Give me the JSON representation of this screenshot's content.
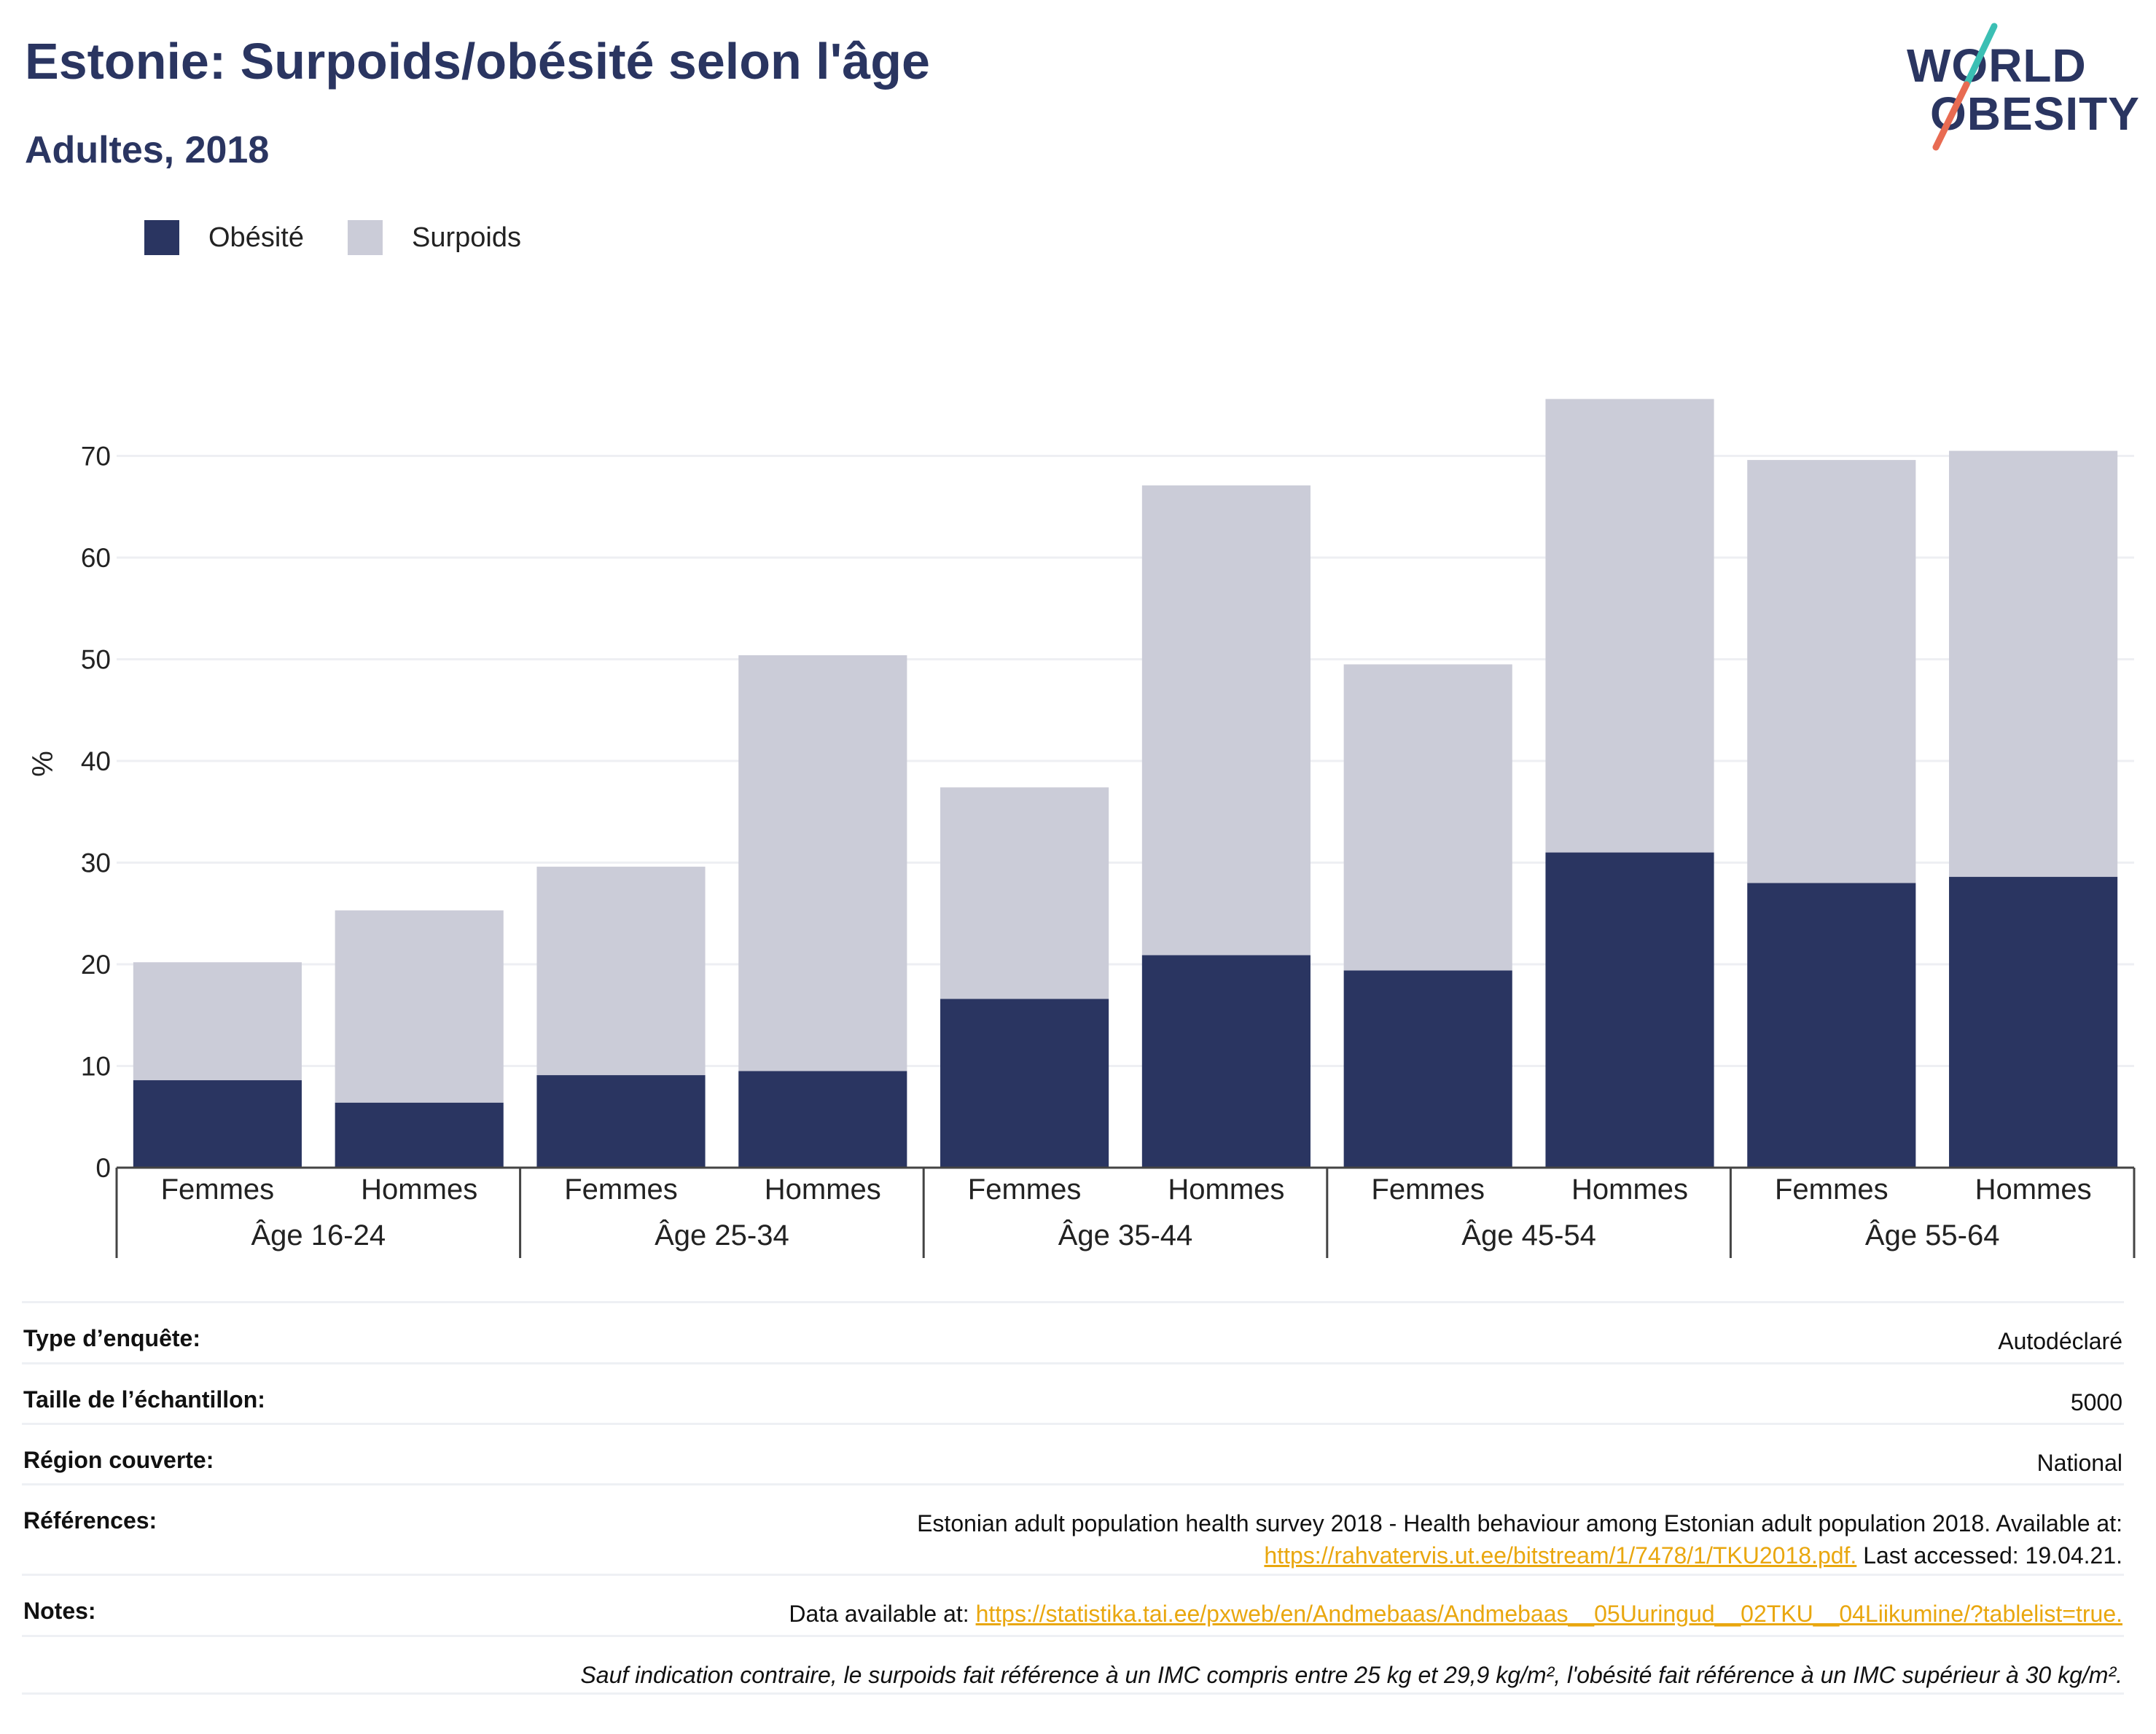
{
  "header": {
    "title": "Estonie: Surpoids/obésité selon l'âge",
    "subtitle": "Adultes, 2018"
  },
  "logo": {
    "line1": "WORLD",
    "line2": "OBESITY",
    "colors": {
      "text": "#2a3561",
      "slash_top": "#3bbfb4",
      "slash_bottom": "#e86b52"
    }
  },
  "colors": {
    "obesity": "#2a3561",
    "overweight": "#cbccd8",
    "grid": "#eeeff3",
    "axis": "#444444",
    "link": "#e9a70f"
  },
  "chart_data": {
    "type": "bar",
    "stacked": true,
    "ylabel": "%",
    "ylim": [
      0,
      80
    ],
    "yticks": [
      0,
      10,
      20,
      30,
      40,
      50,
      60,
      70
    ],
    "grid": true,
    "legend_position": "top-left",
    "groups": [
      "Âge 16-24",
      "Âge 25-34",
      "Âge 35-44",
      "Âge 45-54",
      "Âge 55-64"
    ],
    "categories": [
      "Femmes",
      "Hommes",
      "Femmes",
      "Hommes",
      "Femmes",
      "Hommes",
      "Femmes",
      "Hommes",
      "Femmes",
      "Hommes"
    ],
    "series": [
      {
        "name": "Obésité",
        "values": [
          8.6,
          6.4,
          9.1,
          9.5,
          16.6,
          20.9,
          19.4,
          31.0,
          28.0,
          28.6
        ]
      },
      {
        "name": "Surpoids",
        "values": [
          11.6,
          18.9,
          20.5,
          40.9,
          20.8,
          46.2,
          30.1,
          44.6,
          41.6,
          41.9
        ]
      }
    ]
  },
  "info": {
    "survey_type": {
      "label": "Type d’enquête:",
      "value": "Autodéclaré"
    },
    "sample_size": {
      "label": "Taille de l’échantillon:",
      "value": "5000"
    },
    "region": {
      "label": "Région couverte:",
      "value": "National"
    },
    "references": {
      "label": "Références:",
      "line1": "Estonian adult population health survey 2018 - Health behaviour among Estonian adult population 2018. Available at:",
      "link": "https://rahvatervis.ut.ee/bitstream/1/7478/1/TKU2018.pdf.",
      "after": " Last accessed: 19.04.21."
    },
    "notes": {
      "label": "Notes:",
      "prefix": "Data available at: ",
      "link": "https://statistika.tai.ee/pxweb/en/Andmebaas/Andmebaas__05Uuringud__02TKU__04Liikumine/?tablelist=true."
    },
    "footnote": "Sauf indication contraire, le surpoids fait référence à un IMC compris entre 25 kg et 29,9 kg/m², l'obésité fait référence à un IMC supérieur à 30 kg/m²."
  }
}
